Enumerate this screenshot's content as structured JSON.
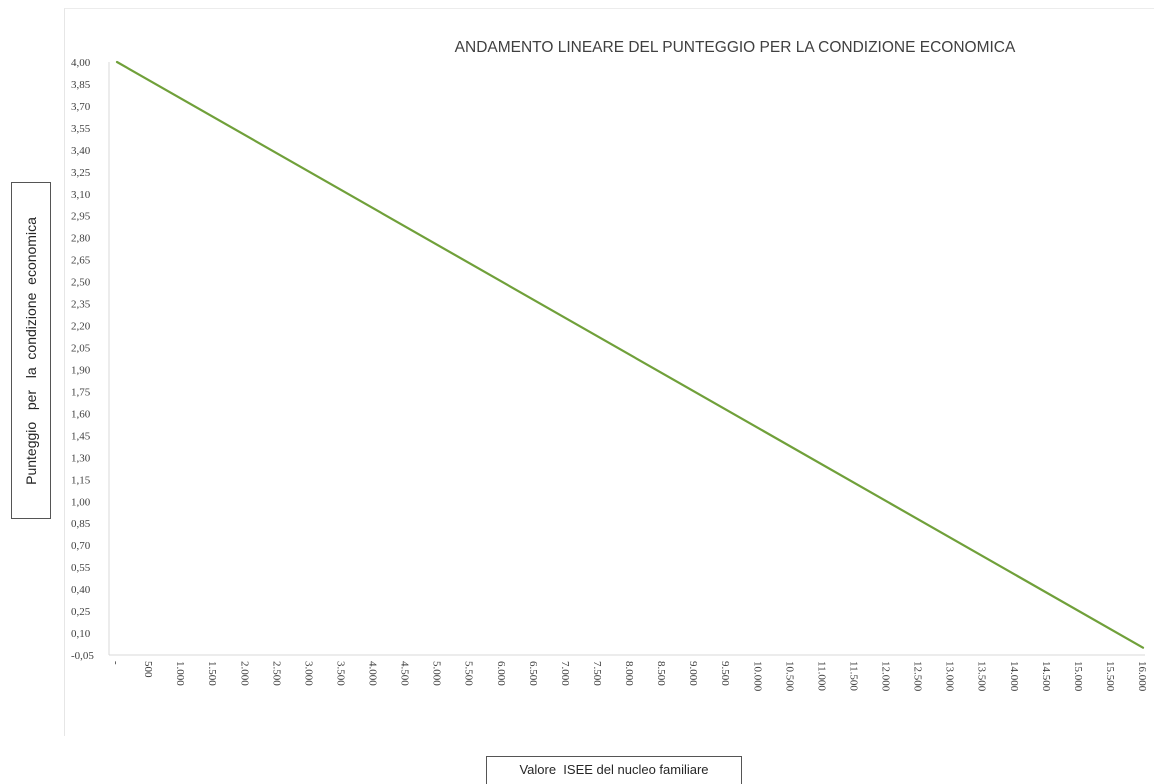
{
  "chart_data": {
    "type": "line",
    "title": "ANDAMENTO LINEARE DEL PUNTEGGIO PER LA CONDIZIONE ECONOMICA",
    "xlabel": "Valore  ISEE del nucleo familiare",
    "ylabel": "Punteggio   per   la  condizione  economica",
    "x_tick_labels": [
      "-",
      "500",
      "1.000",
      "1.500",
      "2.000",
      "2.500",
      "3.000",
      "3.500",
      "4.000",
      "4.500",
      "5.000",
      "5.500",
      "6.000",
      "6.500",
      "7.000",
      "7.500",
      "8.000",
      "8.500",
      "9.000",
      "9.500",
      "10.000",
      "10.500",
      "11.000",
      "11.500",
      "12.000",
      "12.500",
      "13.000",
      "13.500",
      "14.000",
      "14.500",
      "15.000",
      "15.500",
      "16.000"
    ],
    "y_tick_labels": [
      "-0,05",
      "0,10",
      "0,25",
      "0,40",
      "0,55",
      "0,70",
      "0,85",
      "1,00",
      "1,15",
      "1,30",
      "1,45",
      "1,60",
      "1,75",
      "1,90",
      "2,05",
      "2,20",
      "2,35",
      "2,50",
      "2,65",
      "2,80",
      "2,95",
      "3,10",
      "3,25",
      "3,40",
      "3,55",
      "3,70",
      "3,85",
      "4,00"
    ],
    "xlim": [
      0,
      16000
    ],
    "ylim": [
      -0.05,
      4.0
    ],
    "series": [
      {
        "x": [
          0,
          16000
        ],
        "y": [
          4.0,
          0.0
        ],
        "color": "#70a03a"
      }
    ],
    "grid": false,
    "legend": "none"
  }
}
